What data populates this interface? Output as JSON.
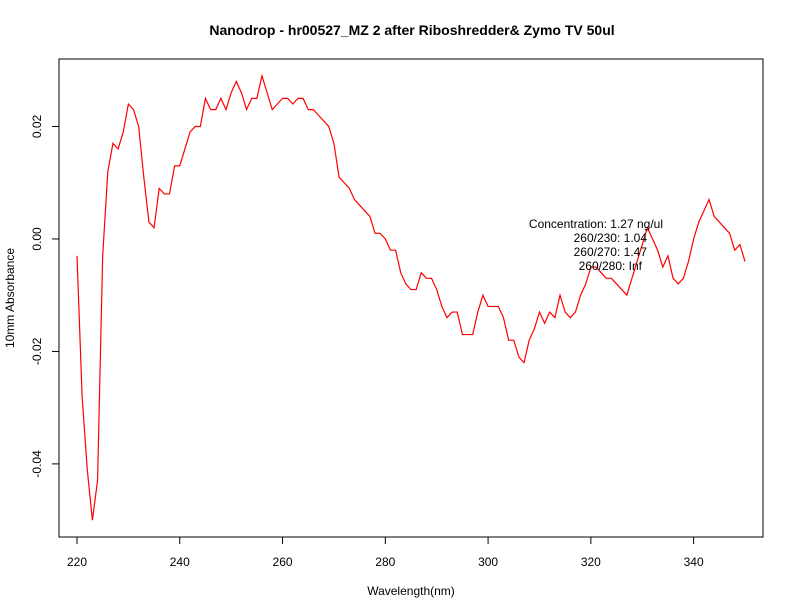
{
  "chart_data": {
    "type": "line",
    "title": "Nanodrop - hr00527_MZ 2 after Riboshredder& Zymo  TV 50ul",
    "xlabel": "Wavelength(nm)",
    "ylabel": "10mm Absorbance",
    "xlim": [
      216.5,
      353.5
    ],
    "ylim": [
      -0.053,
      0.032
    ],
    "x_ticks": [
      220,
      240,
      260,
      280,
      300,
      320,
      340
    ],
    "y_ticks": [
      -0.04,
      -0.02,
      0.0,
      0.02
    ],
    "x_tick_labels": [
      "220",
      "240",
      "260",
      "280",
      "300",
      "320",
      "340"
    ],
    "y_tick_labels": [
      "-0.04",
      "-0.02",
      "0.00",
      "0.02"
    ],
    "grid": false,
    "legend": "none",
    "series_color": "#ff0000",
    "series": [
      {
        "x": [
          220,
          221,
          222,
          223,
          224,
          225,
          226,
          227,
          228,
          229,
          230,
          231,
          232,
          233,
          234,
          235,
          236,
          237,
          238,
          239,
          240,
          241,
          242,
          243,
          244,
          245,
          246,
          247,
          248,
          249,
          250,
          251,
          252,
          253,
          254,
          255,
          256,
          257,
          258,
          259,
          260,
          261,
          262,
          263,
          264,
          265,
          266,
          267,
          268,
          269,
          270,
          271,
          272,
          273,
          274,
          275,
          276,
          277,
          278,
          279,
          280,
          281,
          282,
          283,
          284,
          285,
          286,
          287,
          288,
          289,
          290,
          291,
          292,
          293,
          294,
          295,
          296,
          297,
          298,
          299,
          300,
          301,
          302,
          303,
          304,
          305,
          306,
          307,
          308,
          309,
          310,
          311,
          312,
          313,
          314,
          315,
          316,
          317,
          318,
          319,
          320,
          321,
          322,
          323,
          324,
          325,
          326,
          327,
          328,
          329,
          330,
          331,
          332,
          333,
          334,
          335,
          336,
          337,
          338,
          339,
          340,
          341,
          342,
          343,
          344,
          345,
          346,
          347,
          348,
          349,
          350
        ],
        "values": [
          -0.003,
          -0.028,
          -0.041,
          -0.05,
          -0.043,
          -0.003,
          0.012,
          0.017,
          0.016,
          0.019,
          0.024,
          0.023,
          0.02,
          0.011,
          0.003,
          0.002,
          0.009,
          0.008,
          0.008,
          0.013,
          0.013,
          0.016,
          0.019,
          0.02,
          0.02,
          0.025,
          0.023,
          0.023,
          0.025,
          0.023,
          0.026,
          0.028,
          0.026,
          0.023,
          0.025,
          0.025,
          0.029,
          0.026,
          0.023,
          0.024,
          0.025,
          0.025,
          0.024,
          0.025,
          0.025,
          0.023,
          0.023,
          0.022,
          0.021,
          0.02,
          0.017,
          0.011,
          0.01,
          0.009,
          0.007,
          0.006,
          0.005,
          0.004,
          0.001,
          0.001,
          0.0,
          -0.002,
          -0.002,
          -0.006,
          -0.008,
          -0.009,
          -0.009,
          -0.006,
          -0.007,
          -0.007,
          -0.009,
          -0.012,
          -0.014,
          -0.013,
          -0.013,
          -0.017,
          -0.017,
          -0.017,
          -0.013,
          -0.01,
          -0.012,
          -0.012,
          -0.012,
          -0.014,
          -0.018,
          -0.018,
          -0.021,
          -0.022,
          -0.018,
          -0.016,
          -0.013,
          -0.015,
          -0.013,
          -0.014,
          -0.01,
          -0.013,
          -0.014,
          -0.013,
          -0.01,
          -0.008,
          -0.005,
          -0.005,
          -0.006,
          -0.007,
          -0.007,
          -0.008,
          -0.009,
          -0.01,
          -0.007,
          -0.004,
          -0.001,
          0.002,
          0.0,
          -0.002,
          -0.005,
          -0.003,
          -0.007,
          -0.008,
          -0.007,
          -0.004,
          0.0,
          0.003,
          0.005,
          0.007,
          0.004,
          0.003,
          0.002,
          0.001,
          -0.002,
          -0.001,
          -0.004
        ]
      }
    ],
    "annotations": [
      "Concentration: 1.27 ng/ul",
      "260/230: 1.04",
      "260/270: 1.47",
      "260/280: Inf"
    ]
  }
}
